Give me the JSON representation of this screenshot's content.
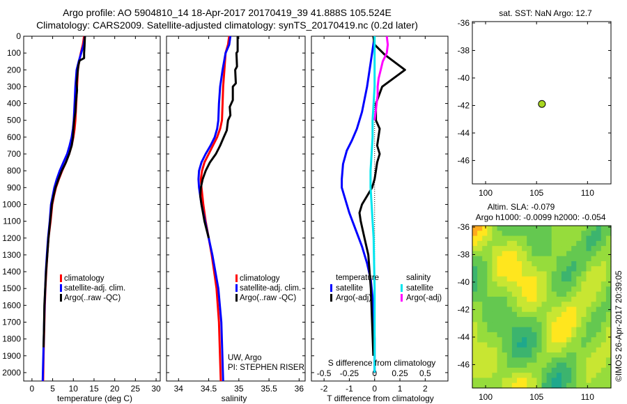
{
  "header": {
    "title_line1": "Argo profile: AO 5904810_14 18-Apr-2017 20170419_39 41.888S 105.524E",
    "title_line2": "Climatology: CARS2009. Satellite-adjusted climatology: synTS_20170419.nc (0.2d later)"
  },
  "colors": {
    "climatology": "#ff0000",
    "satellite": "#0000ff",
    "argo": "#000000",
    "satellite_salinity": "#00e5ee",
    "argo_salinity": "#ff00ff",
    "sst_marker": "#a8d620"
  },
  "chart_data": [
    {
      "type": "line",
      "name": "temperature-profile",
      "xlabel": "temperature (deg C)",
      "ylim": [
        2050,
        0
      ],
      "xlim": [
        -2,
        31
      ],
      "xticks": [
        0,
        5,
        10,
        15,
        20,
        25,
        30
      ],
      "yticks": [
        0,
        100,
        200,
        300,
        400,
        500,
        600,
        700,
        800,
        900,
        1000,
        1100,
        1200,
        1300,
        1400,
        1500,
        1600,
        1700,
        1800,
        1900,
        2000
      ],
      "legend": [
        "climatology",
        "satellite-adj. clim.",
        "Argo(..raw -QC)"
      ],
      "legend_position": "lower-right",
      "series": [
        {
          "name": "climatology",
          "color": "#ff0000",
          "x": [
            12.6,
            12.3,
            11.8,
            11.4,
            11.1,
            10.9,
            10.7,
            10.5,
            10.3,
            10.0,
            9.6,
            9.0,
            8.2,
            7.3,
            6.5,
            5.8,
            5.3,
            4.9,
            4.5,
            4.0,
            3.7,
            3.45,
            3.25,
            3.1,
            2.95,
            2.8,
            2.7
          ],
          "y": [
            0,
            50,
            100,
            150,
            200,
            300,
            400,
            500,
            550,
            600,
            650,
            700,
            750,
            800,
            850,
            900,
            950,
            1000,
            1100,
            1200,
            1300,
            1400,
            1500,
            1600,
            1750,
            1900,
            2050
          ]
        },
        {
          "name": "satellite-adj. clim.",
          "color": "#0000ff",
          "x": [
            12.8,
            12.5,
            11.9,
            11.3,
            10.8,
            10.5,
            10.3,
            10.1,
            9.9,
            9.6,
            9.1,
            8.5,
            7.6,
            6.7,
            6.0,
            5.4,
            5.0,
            4.6,
            4.3,
            3.9,
            3.6,
            3.35,
            3.2,
            3.05,
            2.9,
            2.75,
            2.6
          ],
          "y": [
            0,
            50,
            100,
            150,
            200,
            300,
            400,
            500,
            550,
            600,
            650,
            700,
            750,
            800,
            850,
            900,
            950,
            1000,
            1100,
            1200,
            1300,
            1400,
            1500,
            1600,
            1750,
            1900,
            2050
          ]
        },
        {
          "name": "Argo(..raw -QC)",
          "color": "#000000",
          "x": [
            12.8,
            12.7,
            12.6,
            12.6,
            11.5,
            11.2,
            11.0,
            10.8,
            10.9,
            10.6,
            10.5,
            10.2,
            10.0,
            9.9,
            9.6,
            9.0,
            8.2,
            7.2,
            6.4,
            5.7,
            5.2,
            4.8,
            4.4,
            4.0,
            3.7,
            3.4,
            3.2,
            3.0,
            2.9,
            2.8
          ],
          "y": [
            0,
            60,
            100,
            130,
            145,
            175,
            220,
            280,
            320,
            400,
            450,
            500,
            560,
            600,
            650,
            700,
            750,
            800,
            850,
            900,
            950,
            1000,
            1100,
            1200,
            1300,
            1400,
            1500,
            1600,
            1750,
            1850
          ]
        }
      ]
    },
    {
      "type": "line",
      "name": "salinity-profile",
      "xlabel": "salinity",
      "ylim": [
        2050,
        0
      ],
      "xlim": [
        33.8,
        36.1
      ],
      "xticks": [
        34,
        34.5,
        35,
        35.5,
        36
      ],
      "legend": [
        "climatology",
        "satellite-adj. clim.",
        "Argo(..raw -QC)"
      ],
      "legend_position": "lower-right",
      "annotations": [
        "UW, Argo",
        "PI: STEPHEN RISER"
      ],
      "series": [
        {
          "name": "climatology",
          "color": "#ff0000",
          "x": [
            34.84,
            34.82,
            34.78,
            34.76,
            34.74,
            34.73,
            34.72,
            34.69,
            34.64,
            34.57,
            34.5,
            34.43,
            34.39,
            34.37,
            34.38,
            34.41,
            34.45,
            34.5,
            34.55,
            34.59,
            34.63,
            34.67,
            34.7
          ],
          "y": [
            0,
            50,
            100,
            200,
            300,
            400,
            500,
            550,
            600,
            650,
            700,
            750,
            800,
            850,
            900,
            1000,
            1100,
            1200,
            1300,
            1400,
            1500,
            1700,
            2050
          ]
        },
        {
          "name": "satellite-adj. clim.",
          "color": "#0000ff",
          "x": [
            34.86,
            34.84,
            34.78,
            34.73,
            34.69,
            34.67,
            34.66,
            34.64,
            34.6,
            34.53,
            34.45,
            34.38,
            34.34,
            34.33,
            34.34,
            34.38,
            34.44,
            34.5,
            34.56,
            34.61,
            34.66,
            34.71,
            34.74
          ],
          "y": [
            0,
            50,
            100,
            200,
            300,
            400,
            500,
            550,
            600,
            650,
            700,
            750,
            800,
            850,
            900,
            1000,
            1100,
            1200,
            1300,
            1400,
            1500,
            1700,
            2050
          ]
        },
        {
          "name": "Argo(..raw -QC)",
          "color": "#000000",
          "x": [
            34.98,
            34.98,
            34.96,
            34.97,
            34.94,
            34.95,
            34.9,
            34.9,
            34.85,
            34.86,
            34.82,
            34.8,
            34.75,
            34.69,
            34.62,
            34.52,
            34.45,
            34.4,
            34.37,
            34.36,
            34.38,
            34.43,
            34.5
          ],
          "y": [
            0,
            90,
            100,
            180,
            200,
            280,
            300,
            380,
            420,
            470,
            500,
            560,
            600,
            650,
            700,
            750,
            800,
            850,
            900,
            950,
            1000,
            1100,
            1200
          ]
        }
      ]
    },
    {
      "type": "line",
      "name": "difference-profile",
      "xlabel": "T difference from climatology",
      "xlabel_top": "S difference from climatology",
      "ylim": [
        2050,
        0
      ],
      "xlim": [
        -2.5,
        2.9
      ],
      "xticks": [
        -2,
        -1,
        0,
        1,
        2
      ],
      "xticks_top": [
        -0.5,
        -0.25,
        0,
        0.25,
        0.5
      ],
      "xtick_labels_top": [
        "-0.5",
        "-0.25",
        "0",
        "0.25",
        "0.5"
      ],
      "legend_headers": [
        "temperature",
        "salinity"
      ],
      "legend": [
        "satellite",
        "Argo(-adj)",
        "satellite",
        "Argo(-adj)"
      ],
      "series": [
        {
          "name": "satellite",
          "quantity": "temperature",
          "color": "#0000ff",
          "x": [
            0.0,
            -0.05,
            -0.1,
            -0.2,
            -0.3,
            -0.5,
            -0.7,
            -0.9,
            -1.1,
            -1.25,
            -1.3,
            -1.3,
            -1.2,
            -1.0,
            -0.75,
            -0.5,
            -0.3,
            -0.15,
            -0.05,
            0.0,
            0.0
          ],
          "y": [
            0,
            50,
            100,
            200,
            300,
            450,
            550,
            620,
            680,
            760,
            850,
            900,
            950,
            1050,
            1150,
            1250,
            1350,
            1450,
            1600,
            1800,
            2000
          ]
        },
        {
          "name": "Argo(-adj)",
          "quantity": "temperature",
          "color": "#000000",
          "x": [
            -0.05,
            0.0,
            0.4,
            1.2,
            0.3,
            0.05,
            0.05,
            0.2,
            0.15,
            0.1,
            0.2,
            0.1,
            0.05,
            0.0,
            -0.1,
            -0.3,
            -0.5,
            -0.6,
            -0.55,
            -0.4,
            -0.25,
            -0.15,
            -0.1,
            -0.05
          ],
          "y": [
            0,
            50,
            110,
            200,
            300,
            400,
            500,
            550,
            600,
            650,
            700,
            750,
            800,
            850,
            900,
            950,
            1000,
            1050,
            1100,
            1200,
            1300,
            1500,
            1700,
            1900
          ]
        },
        {
          "name": "satellite",
          "quantity": "salinity",
          "color": "#00e5ee",
          "x": [
            0.0,
            0.0,
            0.0,
            0.0,
            -0.01,
            -0.02,
            -0.02,
            -0.03,
            -0.04,
            -0.04,
            -0.03,
            -0.02,
            -0.01,
            0.0,
            0.0
          ],
          "y": [
            0,
            100,
            200,
            300,
            400,
            500,
            600,
            700,
            800,
            900,
            1000,
            1100,
            1200,
            1500,
            2000
          ]
        },
        {
          "name": "Argo(-adj)",
          "quantity": "salinity",
          "color": "#ff00ff",
          "x": [
            0.12,
            0.13,
            0.12,
            0.08,
            0.06,
            0.04,
            0.03,
            0.03,
            0.02,
            0.01,
            0.0
          ],
          "y": [
            0,
            50,
            100,
            150,
            200,
            250,
            300,
            350,
            400,
            450,
            500
          ]
        }
      ]
    },
    {
      "type": "scatter",
      "name": "location-map",
      "title": "sat. SST: NaN Argo: 12.7",
      "xlim": [
        98.7,
        112.3
      ],
      "ylim": [
        -47.7,
        -35.9
      ],
      "xticks": [
        100,
        105,
        110
      ],
      "yticks": [
        -36,
        -38,
        -40,
        -42,
        -44,
        -46
      ],
      "points": [
        {
          "x": 105.524,
          "y": -41.888
        }
      ]
    },
    {
      "type": "heatmap",
      "name": "altimetry-map",
      "title_line1": "Altim. SLA: -0.079",
      "title_line2": "Argo h1000: -0.0099 h2000: -0.054",
      "xlim": [
        98.7,
        112.3
      ],
      "ylim": [
        -47.7,
        -35.9
      ],
      "xticks": [
        100,
        105,
        110
      ],
      "yticks": [
        -36,
        -38,
        -40,
        -42,
        -44,
        -46
      ],
      "colors": [
        "#1fa88c",
        "#3cb46e",
        "#64c850",
        "#96dc3c",
        "#c8e632",
        "#ffe61e",
        "#ffaa1e"
      ]
    }
  ],
  "credit": "©IMOS 26-Apr-2017 20:39:05"
}
